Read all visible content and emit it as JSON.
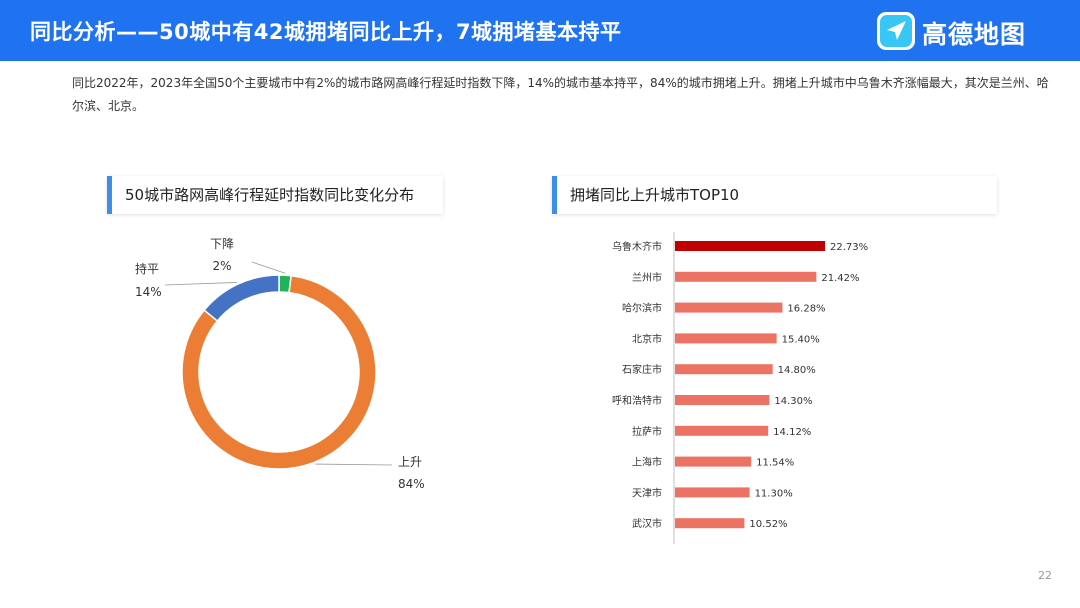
{
  "header": {
    "title": "同比分析——50城中有42城拥堵同比上升，7城拥堵基本持平",
    "logo_text": "高德地图",
    "bg_color": "#1f73f0"
  },
  "intro_text": "同比2022年，2023年全国50个主要城市中有2%的城市路网高峰行程延时指数下降，14%的城市基本持平，84%的城市拥堵上升。拥堵上升城市中乌鲁木齐涨幅最大，其次是兰州、哈尔滨、北京。",
  "page_number": "22",
  "chart_data": [
    {
      "type": "pie",
      "title": "50城市路网高峰行程延时指数同比变化分布",
      "donut": true,
      "slices": [
        {
          "label": "下降",
          "value": 2,
          "value_label": "2%",
          "color": "#1fb45a"
        },
        {
          "label": "上升",
          "value": 84,
          "value_label": "84%",
          "color": "#eb7d35"
        },
        {
          "label": "持平",
          "value": 14,
          "value_label": "14%",
          "color": "#4472c4"
        }
      ]
    },
    {
      "type": "bar",
      "orientation": "horizontal",
      "title": "拥堵同比上升城市TOP10",
      "categories": [
        "乌鲁木齐市",
        "兰州市",
        "哈尔滨市",
        "北京市",
        "石家庄市",
        "呼和浩特市",
        "拉萨市",
        "上海市",
        "天津市",
        "武汉市"
      ],
      "values": [
        22.73,
        21.42,
        16.28,
        15.4,
        14.8,
        14.3,
        14.12,
        11.54,
        11.3,
        10.52
      ],
      "value_labels": [
        "22.73%",
        "21.42%",
        "16.28%",
        "15.40%",
        "14.80%",
        "14.30%",
        "14.12%",
        "11.54%",
        "11.30%",
        "10.52%"
      ],
      "highlight_color": "#c00000",
      "bar_color": "#ec7263",
      "xlim": [
        0,
        30
      ]
    }
  ]
}
